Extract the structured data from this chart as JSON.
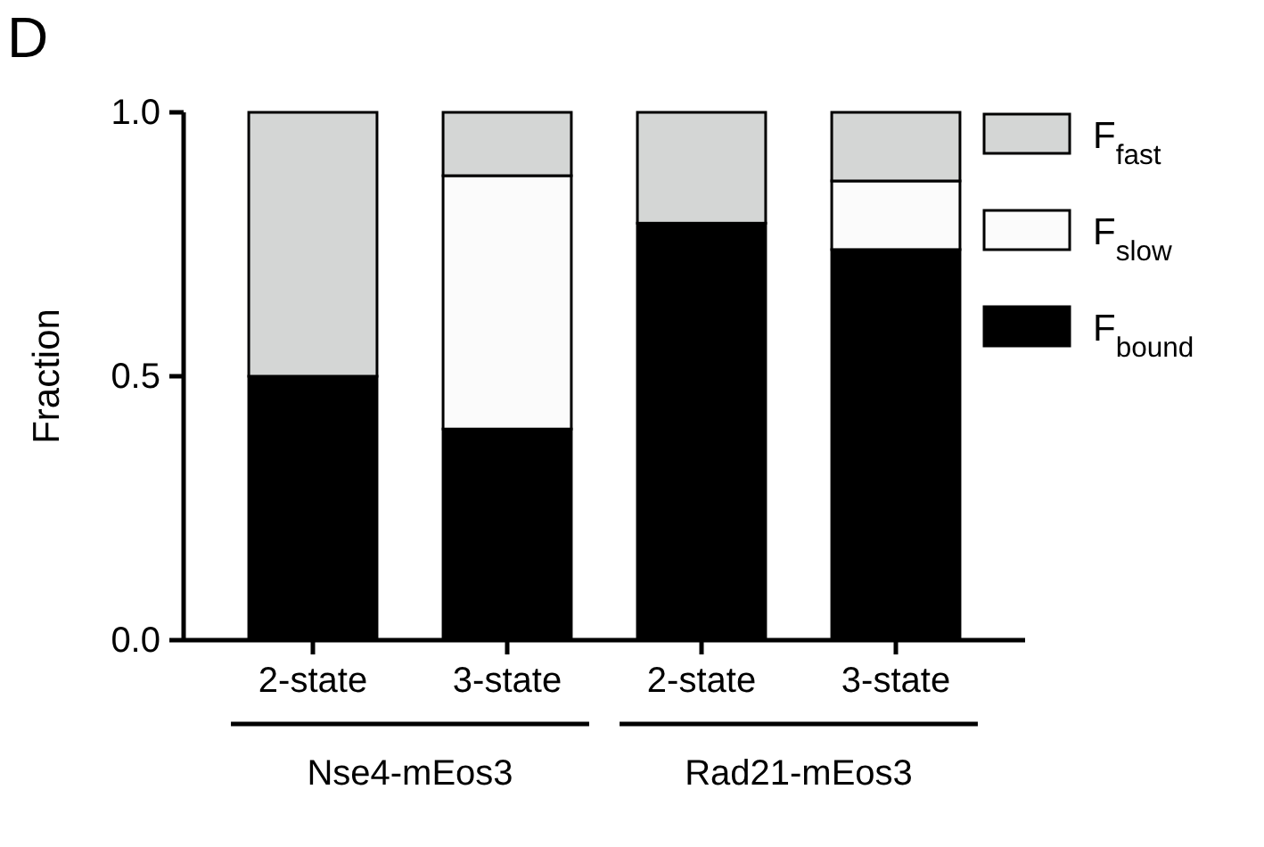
{
  "chart_data": {
    "type": "bar",
    "stacked": true,
    "ylabel": "Fraction",
    "categories": [
      "2-state",
      "3-state",
      "2-state",
      "3-state"
    ],
    "series": [
      {
        "name": "F$_{bound}$",
        "color": "#000000",
        "values": [
          0.5,
          0.4,
          0.79,
          0.74
        ]
      },
      {
        "name": "F$_{slow}$",
        "color": "#fbfbfb",
        "values": [
          null,
          0.48,
          null,
          0.13
        ]
      },
      {
        "name": "F$_{fast}$",
        "color": "#d4d6d5",
        "values": [
          0.5,
          0.12,
          0.21,
          0.13
        ]
      }
    ],
    "ylim": [
      0,
      1
    ],
    "yticks": [
      {
        "value": 0,
        "label": "0.0"
      },
      {
        "value": 0.5,
        "label": "0.5"
      },
      {
        "value": 1,
        "label": "1.0"
      }
    ],
    "legend": "top right",
    "grid": false,
    "annotations": [
      "D",
      "Nse4-mEos3",
      "Rad21-mEos3"
    ]
  }
}
